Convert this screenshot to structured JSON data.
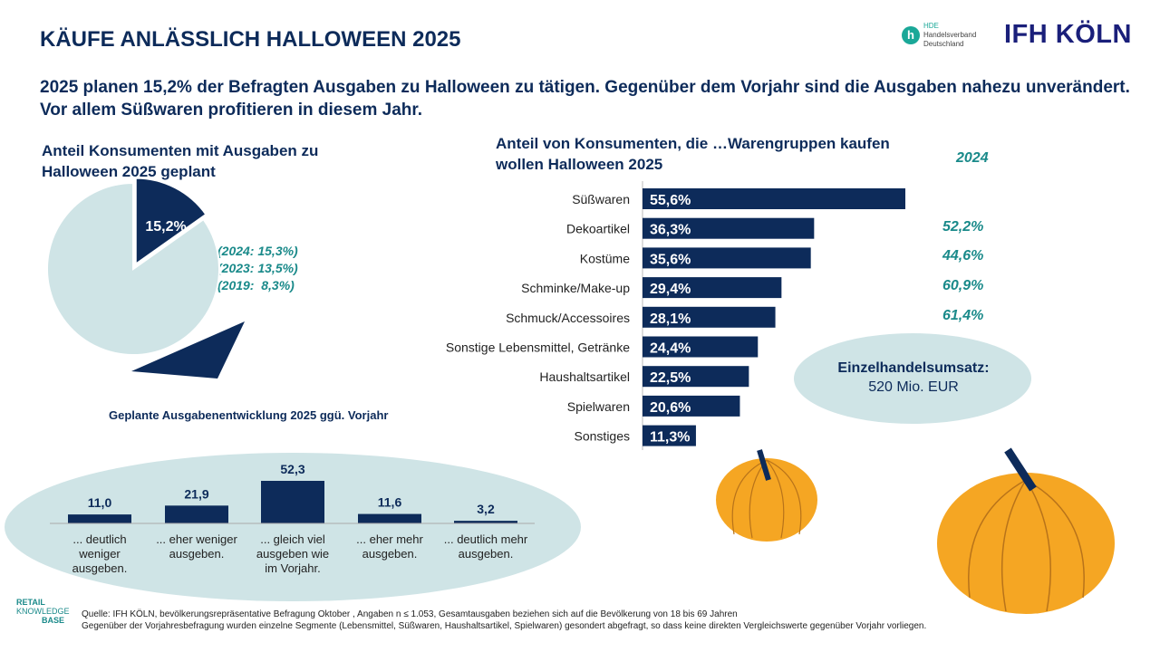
{
  "title": "KÄUFE ANLÄSSLICH HALLOWEEN 2025",
  "subtitle": "2025 planen 15,2% der Befragten Ausgaben zu Halloween zu tätigen. Gegenüber dem Vorjahr sind die Ausgaben nahezu unverändert. Vor allem Süßwaren profitieren in diesem Jahr.",
  "logos": {
    "hde": "HDE Handelsverband Deutschland",
    "ifh": "IFH KÖLN",
    "rkb": "RETAIL KNOWLEDGE BASE"
  },
  "hde_lines": [
    "HDE",
    "Handelsverband",
    "Deutschland"
  ],
  "rkb_lines": [
    "RETAIL",
    "KNOWLEDGE",
    "BASE"
  ],
  "colors": {
    "navy": "#0d2b5a",
    "light_teal": "#cfe4e6",
    "teal_text": "#1a8a8a",
    "pumpkin": "#f5a623"
  },
  "chart_data": [
    {
      "type": "pie",
      "title": "Anteil Konsumenten mit Ausgaben zu Halloween 2025 geplant",
      "values": [
        15.2,
        84.8
      ],
      "labels": [
        "15,2%",
        ""
      ],
      "annotations": [
        "(2024: 15,3%)",
        "(2023: 13,5%)",
        "(2019:  8,3%)"
      ]
    },
    {
      "type": "bar",
      "orientation": "horizontal",
      "title": "Anteil von Konsumenten, die …Warengruppen kaufen wollen Halloween 2025",
      "categories": [
        "Süßwaren",
        "Dekoartikel",
        "Kostüme",
        "Schminke/Make-up",
        "Schmuck/Accessoires",
        "Sonstige Lebensmittel, Getränke",
        "Haushaltsartikel",
        "Spielwaren",
        "Sonstiges"
      ],
      "values": [
        55.6,
        36.3,
        35.6,
        29.4,
        28.1,
        24.4,
        22.5,
        20.6,
        11.3
      ],
      "data_labels": [
        "55,6%",
        "36,3%",
        "35,6%",
        "29,4%",
        "28,1%",
        "24,4%",
        "22,5%",
        "20,6%",
        "11,3%"
      ],
      "comparison": {
        "name": "2024",
        "labels": [
          "",
          "52,2%",
          "44,6%",
          "60,9%",
          "61,4%",
          "",
          "",
          "",
          ""
        ]
      }
    },
    {
      "type": "bar",
      "title": "Geplante Ausgabenentwicklung 2025 ggü. Vorjahr",
      "categories": [
        "... deutlich weniger ausgeben.",
        "... eher weniger ausgeben.",
        "... gleich viel ausgeben wie im Vorjahr.",
        "... eher mehr ausgeben.",
        "... deutlich mehr ausgeben."
      ],
      "values": [
        11.0,
        21.9,
        52.3,
        11.6,
        3.2
      ],
      "data_labels": [
        "11,0",
        "21,9",
        "52,3",
        "11,6",
        "3,2"
      ]
    }
  ],
  "callout": {
    "label": "Einzelhandelsumsatz:",
    "value": "520 Mio. EUR"
  },
  "source": [
    "Quelle: IFH KÖLN, bevölkerungsrepräsentative Befragung Oktober , Angaben n ≤ 1.053, Gesamtausgaben beziehen sich auf die Bevölkerung von 18 bis 69 Jahren",
    "Gegenüber der Vorjahresbefragung wurden einzelne Segmente (Lebensmittel, Süßwaren, Haushaltsartikel, Spielwaren) gesondert abgefragt, so dass keine direkten Vergleichswerte gegenüber Vorjahr vorliegen."
  ]
}
